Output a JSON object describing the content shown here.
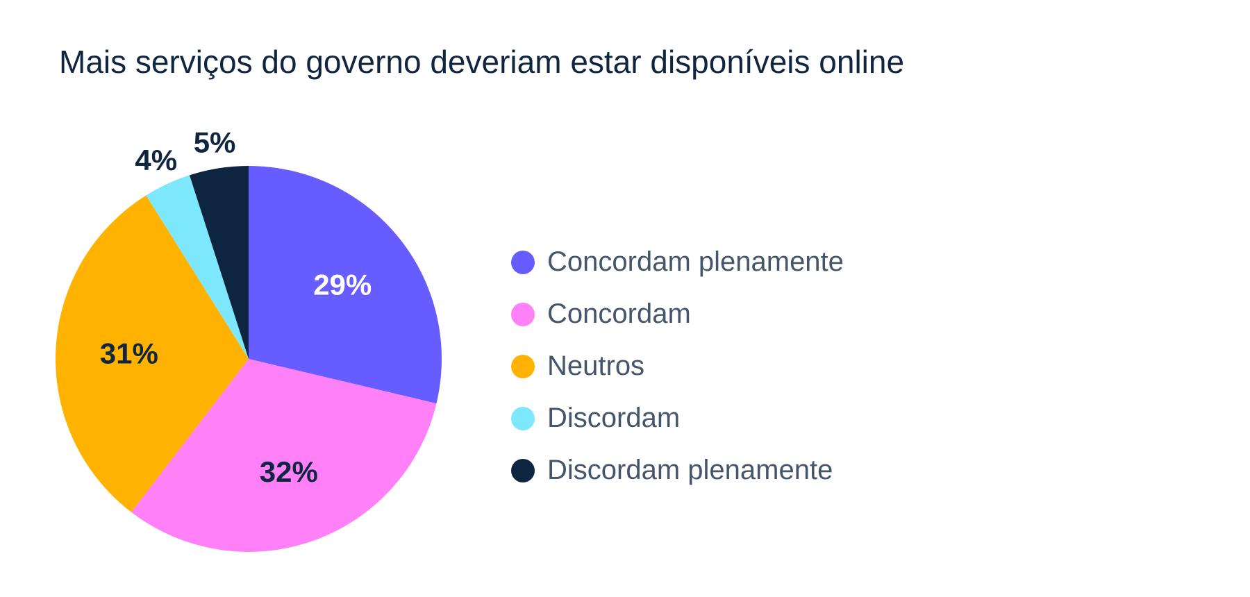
{
  "chart_data": {
    "type": "pie",
    "title": "Mais serviços do governo deveriam estar disponíveis online",
    "slices": [
      {
        "label": "Concordam plenamente",
        "value": 29,
        "value_label": "29%",
        "color": "#665cff",
        "label_color": "#ffffff"
      },
      {
        "label": "Concordam",
        "value": 32,
        "value_label": "32%",
        "color": "#ff80f7",
        "label_color": "#0f2540"
      },
      {
        "label": "Neutros",
        "value": 31,
        "value_label": "31%",
        "color": "#ffb300",
        "label_color": "#0f2540"
      },
      {
        "label": "Discordam",
        "value": 4,
        "value_label": "4%",
        "color": "#7de8fc",
        "label_color": "#0f2540"
      },
      {
        "label": "Discordam plenamente",
        "value": 5,
        "value_label": "5%",
        "color": "#0d2540",
        "label_color": "#0f2540"
      }
    ],
    "legend_position": "right"
  }
}
